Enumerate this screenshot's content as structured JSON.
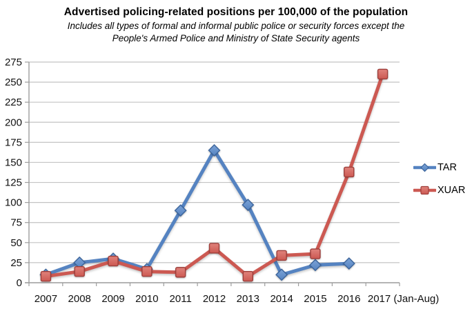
{
  "title": "Advertised policing-related positions per 100,000 of the population",
  "subtitle_line1": "Includes all types of formal and informal public police or security forces except the",
  "subtitle_line2": "People's Armed Police and Ministry of State Security agents",
  "chart_data": {
    "type": "line",
    "title": "Advertised policing-related positions per 100,000 of the population",
    "subtitle": "Includes all types of formal and informal public police or security forces except the People's Armed Police and Ministry of State Security agents",
    "categories": [
      "2007",
      "2008",
      "2009",
      "2010",
      "2011",
      "2012",
      "2013",
      "2014",
      "2015",
      "2016",
      "2017 (Jan-Aug)"
    ],
    "series": [
      {
        "name": "TAR",
        "marker": "diamond",
        "color": "#5583C1",
        "marker_fill": "#7CA3D6",
        "marker_stroke": "#3C659C",
        "values": [
          10,
          25,
          30,
          17,
          90,
          165,
          97,
          10,
          22,
          24,
          null
        ]
      },
      {
        "name": "XUAR",
        "marker": "square",
        "color": "#CC5952",
        "marker_fill": "#E0837C",
        "marker_stroke": "#9E3F3B",
        "values": [
          8,
          14,
          27,
          14,
          13,
          43,
          8,
          34,
          36,
          138,
          260
        ]
      }
    ],
    "xlabel": "",
    "ylabel": "",
    "ylim": [
      0,
      275
    ],
    "ytick_step": 25,
    "grid": "horizontal",
    "legend_position": "right",
    "axis_color": "#9c9c9c",
    "grid_color": "#c3c3c3",
    "tick_label_color": "#111111"
  }
}
